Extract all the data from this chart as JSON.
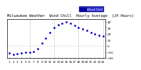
{
  "title": "Milwaukee Weather  Wind Chill  Hourly Average  (24 Hours)",
  "x_hours": [
    1,
    2,
    3,
    4,
    5,
    6,
    7,
    8,
    9,
    10,
    11,
    12,
    13,
    14,
    15,
    16,
    17,
    18,
    19,
    20,
    21,
    22,
    23,
    24
  ],
  "wind_chill": [
    -12,
    -14,
    -13,
    -11,
    -10,
    -10,
    -9,
    -5,
    5,
    13,
    22,
    30,
    35,
    38,
    40,
    38,
    34,
    30,
    28,
    26,
    22,
    20,
    18,
    16
  ],
  "dot_color": "#0000cc",
  "bg_color": "#ffffff",
  "grid_color": "#888888",
  "ylim": [
    -20,
    45
  ],
  "xlim": [
    0.5,
    24.5
  ],
  "title_fontsize": 3.8,
  "tick_fontsize": 3.0,
  "legend_label": "Wind Chill",
  "legend_color": "#0000cc",
  "yticks": [
    -20,
    -10,
    0,
    10,
    20,
    30,
    40
  ],
  "vgrid_at": [
    6,
    12,
    18,
    24
  ]
}
